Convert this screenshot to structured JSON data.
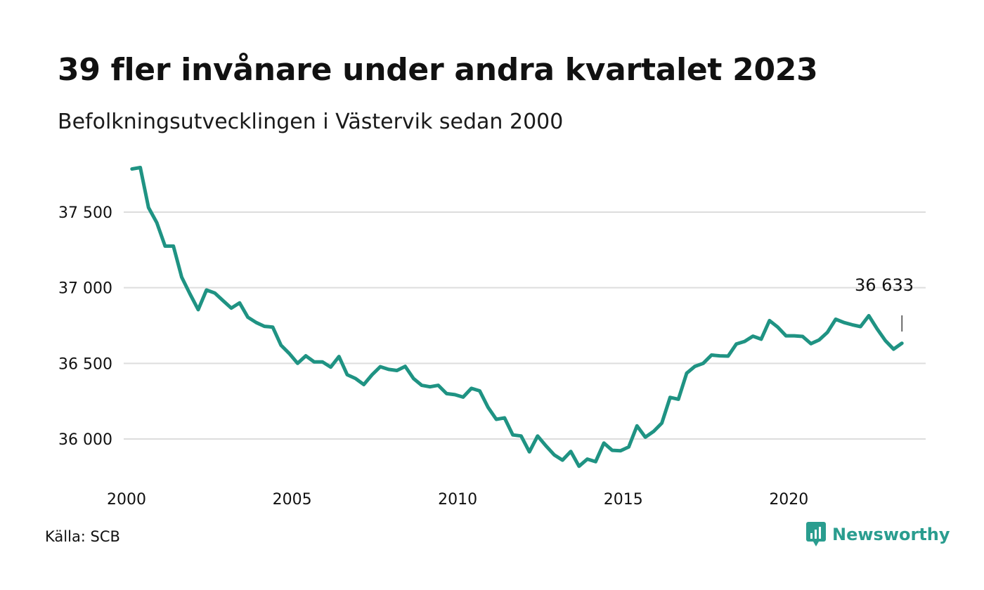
{
  "header": {
    "title": "39 fler invånare under andra kvartalet 2023",
    "subtitle": "Befolkningsutvecklingen i Västervik sedan 2000"
  },
  "footer": {
    "source": "Källa: SCB",
    "brand_name": "Newsworthy",
    "brand_icon": "newsworthy-logo-icon"
  },
  "colors": {
    "line": "#1f9383",
    "grid": "#dddddd",
    "brand": "#2a9d8f"
  },
  "chart_data": {
    "type": "line",
    "title": "39 fler invånare under andra kvartalet 2023",
    "subtitle": "Befolkningsutvecklingen i Västervik sedan 2000",
    "xlabel": "",
    "ylabel": "",
    "xlim": [
      2000,
      2023.5
    ],
    "ylim": [
      35800,
      37850
    ],
    "x_ticks": [
      2000,
      2005,
      2010,
      2015,
      2020
    ],
    "x_tick_labels": [
      "2000",
      "2005",
      "2010",
      "2015",
      "2020"
    ],
    "y_ticks": [
      36000,
      36500,
      37000,
      37500
    ],
    "y_tick_labels": [
      "36 000",
      "36 500",
      "37 000",
      "37 500"
    ],
    "grid": "horizontal",
    "legend": "none",
    "annotation": {
      "x": 2023.5,
      "y": 36633,
      "label": "36 633"
    },
    "series": [
      {
        "x": [
          2000.25,
          2000.5,
          2000.75,
          2001.0,
          2001.25,
          2001.5,
          2001.75,
          2002.0,
          2002.25,
          2002.5,
          2002.75,
          2003.0,
          2003.25,
          2003.5,
          2003.75,
          2004.0,
          2004.25,
          2004.5,
          2004.75,
          2005.0,
          2005.25,
          2005.5,
          2005.75,
          2006.0,
          2006.25,
          2006.5,
          2006.75,
          2007.0,
          2007.25,
          2007.5,
          2007.75,
          2008.0,
          2008.25,
          2008.5,
          2008.75,
          2009.0,
          2009.25,
          2009.5,
          2009.75,
          2010.0,
          2010.25,
          2010.5,
          2010.75,
          2011.0,
          2011.25,
          2011.5,
          2011.75,
          2012.0,
          2012.25,
          2012.5,
          2012.75,
          2013.0,
          2013.25,
          2013.5,
          2013.75,
          2014.0,
          2014.25,
          2014.5,
          2014.75,
          2015.0,
          2015.25,
          2015.5,
          2015.75,
          2016.0,
          2016.25,
          2016.5,
          2016.75,
          2017.0,
          2017.25,
          2017.5,
          2017.75,
          2018.0,
          2018.25,
          2018.5,
          2018.75,
          2019.0,
          2019.25,
          2019.5,
          2019.75,
          2020.0,
          2020.25,
          2020.5,
          2020.75,
          2021.0,
          2021.25,
          2021.5,
          2021.75,
          2022.0,
          2022.25,
          2022.5,
          2022.75,
          2023.0,
          2023.25,
          2023.5
        ],
        "values": [
          37785,
          37795,
          37530,
          37430,
          37275,
          37275,
          37070,
          36960,
          36855,
          36985,
          36965,
          36915,
          36865,
          36900,
          36805,
          36770,
          36745,
          36740,
          36620,
          36565,
          36500,
          36550,
          36510,
          36510,
          36475,
          36545,
          36425,
          36400,
          36360,
          36425,
          36478,
          36460,
          36453,
          36480,
          36400,
          36355,
          36345,
          36355,
          36300,
          36293,
          36277,
          36335,
          36318,
          36210,
          36130,
          36140,
          36027,
          36020,
          35915,
          36020,
          35955,
          35895,
          35860,
          35918,
          35820,
          35867,
          35850,
          35973,
          35925,
          35922,
          35947,
          36087,
          36012,
          36050,
          36105,
          36275,
          36263,
          36435,
          36480,
          36500,
          36555,
          36550,
          36548,
          36628,
          36645,
          36680,
          36660,
          36783,
          36740,
          36682,
          36682,
          36678,
          36630,
          36655,
          36705,
          36792,
          36770,
          36755,
          36743,
          36815,
          36728,
          36650,
          36594,
          36633
        ]
      }
    ]
  }
}
